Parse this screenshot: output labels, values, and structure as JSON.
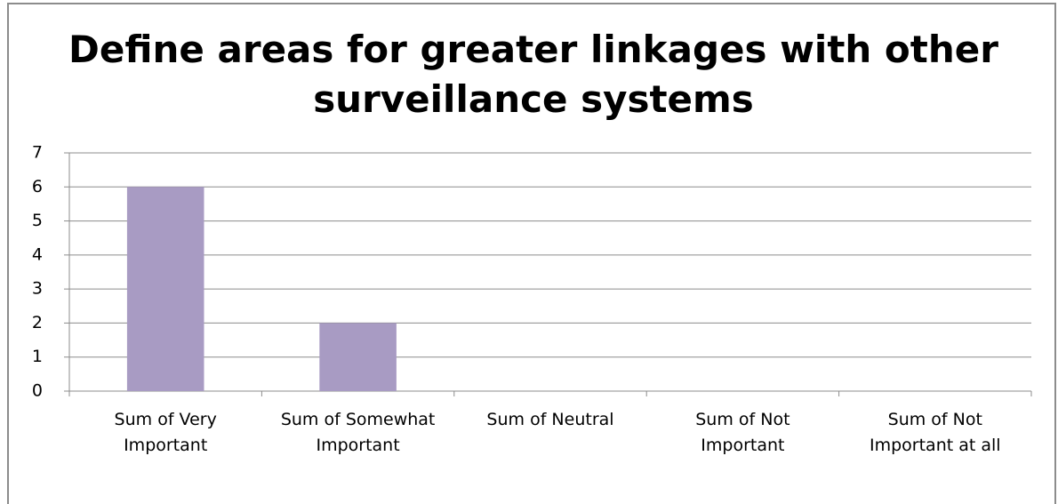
{
  "chart_data": {
    "type": "bar",
    "title": "Define areas for greater linkages with other surveillance systems",
    "categories": [
      "Sum of Very Important",
      "Sum of Somewhat Important",
      "Sum of Neutral",
      "Sum of Not Important",
      "Sum of Not Important at all"
    ],
    "values": [
      6,
      2,
      0,
      0,
      0
    ],
    "color": "#a89bc3",
    "ylim": [
      0,
      7
    ],
    "yticks": [
      0,
      1,
      2,
      3,
      4,
      5,
      6,
      7
    ],
    "grid": true
  }
}
